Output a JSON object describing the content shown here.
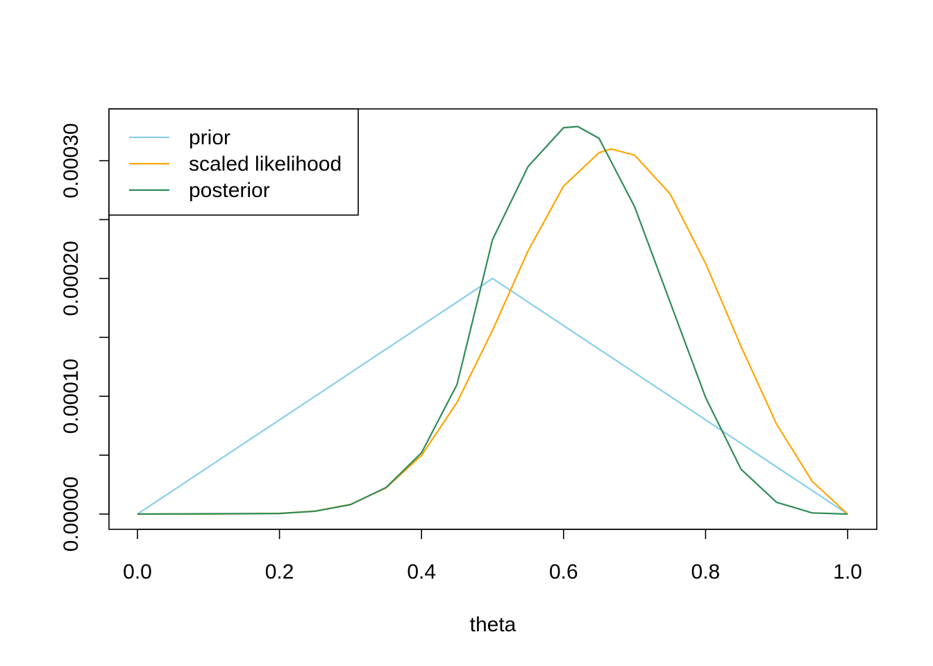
{
  "chart_data": {
    "type": "line",
    "title": "",
    "xlabel": "theta",
    "ylabel": "",
    "xlim": [
      0.0,
      1.0
    ],
    "ylim": [
      0.0,
      0.00033
    ],
    "x_ticks": [
      0.0,
      0.2,
      0.4,
      0.6,
      0.8,
      1.0
    ],
    "x_tick_labels": [
      "0.0",
      "0.2",
      "0.4",
      "0.6",
      "0.8",
      "1.0"
    ],
    "y_ticks": [
      0.0,
      5e-05,
      0.0001,
      0.00015,
      0.0002,
      0.00025,
      0.0003
    ],
    "y_tick_labels": [
      "0.00000",
      "",
      "0.00010",
      "",
      "0.00020",
      "",
      "0.00030"
    ],
    "grid": false,
    "legend_position": "top-left",
    "series": [
      {
        "name": "prior",
        "color": "#87ceeb",
        "x": [
          0.0,
          0.5,
          1.0
        ],
        "y": [
          0.0,
          0.0002,
          0.0
        ]
      },
      {
        "name": "scaled likelihood",
        "color": "#ffa500",
        "x": [
          0.0,
          0.1,
          0.2,
          0.25,
          0.3,
          0.35,
          0.4,
          0.45,
          0.5,
          0.55,
          0.6,
          0.65,
          0.667,
          0.7,
          0.75,
          0.8,
          0.85,
          0.9,
          0.95,
          1.0
        ],
        "y": [
          0.0,
          0.0,
          5e-07,
          2.5e-06,
          8.2e-06,
          2.22e-05,
          4.97e-05,
          9.48e-05,
          0.000156,
          0.0002234,
          0.0002784,
          0.0003068,
          0.00031,
          0.0003047,
          0.0002719,
          0.0002128,
          0.0001422,
          7.63e-05,
          2.79e-05,
          0.0
        ]
      },
      {
        "name": "posterior",
        "color": "#2e8b57",
        "x": [
          0.0,
          0.2,
          0.25,
          0.3,
          0.35,
          0.4,
          0.45,
          0.5,
          0.55,
          0.6,
          0.62,
          0.65,
          0.7,
          0.75,
          0.8,
          0.85,
          0.9,
          0.95,
          1.0
        ],
        "y": [
          0.0,
          5e-07,
          2.4e-06,
          8e-06,
          2.25e-05,
          5.2e-05,
          0.00011,
          0.000233,
          0.000295,
          0.000328,
          0.000329,
          0.000319,
          0.000261,
          0.00018,
          9.9e-05,
          3.8e-05,
          1e-05,
          1e-06,
          0.0
        ]
      }
    ]
  }
}
